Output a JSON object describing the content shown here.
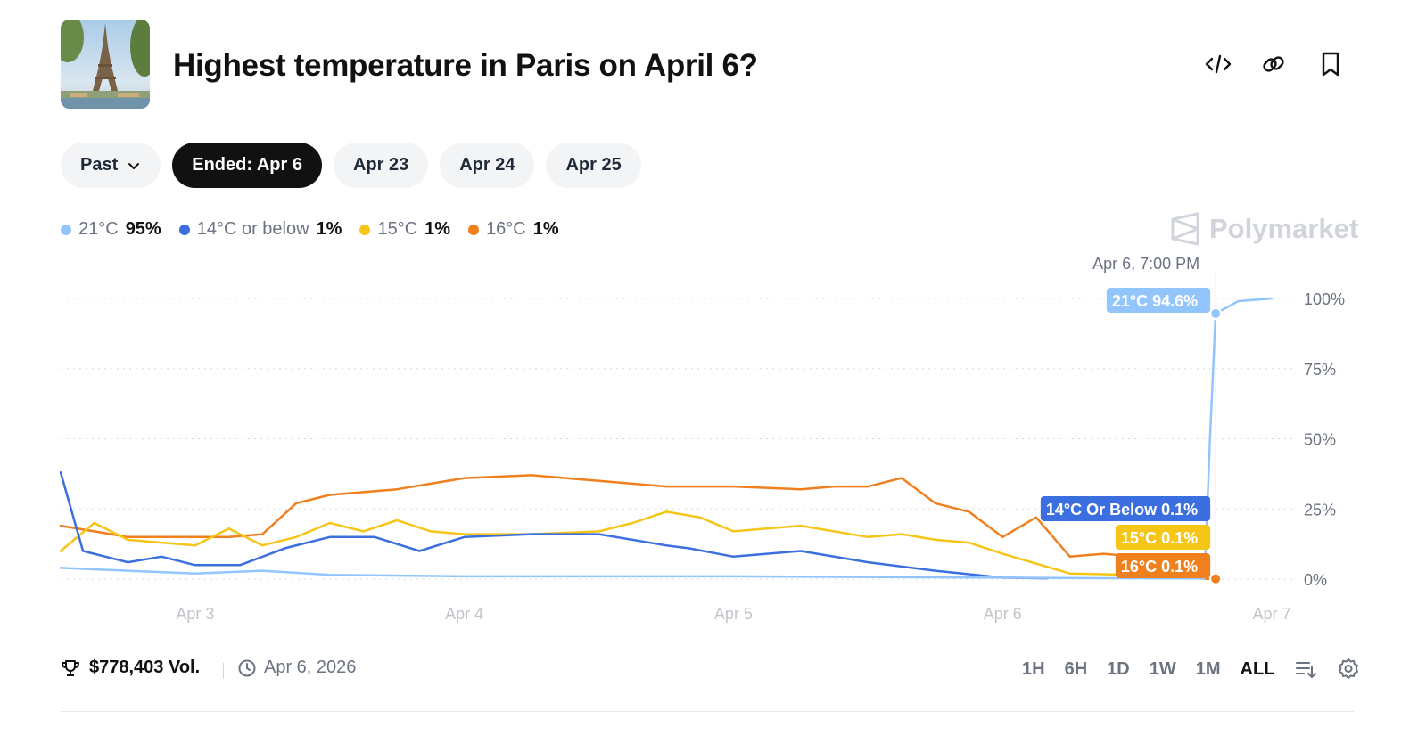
{
  "header": {
    "title": "Highest temperature in Paris on April 6?",
    "icons": [
      "embed-code-icon",
      "link-icon",
      "bookmark-icon"
    ]
  },
  "tabs": [
    {
      "label": "Past",
      "active": false,
      "has_chevron": true
    },
    {
      "label": "Ended: Apr 6",
      "active": true
    },
    {
      "label": "Apr 23",
      "active": false
    },
    {
      "label": "Apr 24",
      "active": false
    },
    {
      "label": "Apr 25",
      "active": false
    }
  ],
  "legend": [
    {
      "name": "21°C",
      "value": "95%",
      "color": "#93c5fd"
    },
    {
      "name": "14°C or below",
      "value": "1%",
      "color": "#3b6fe0"
    },
    {
      "name": "15°C",
      "value": "1%",
      "color": "#f5c518"
    },
    {
      "name": "16°C",
      "value": "1%",
      "color": "#f07f1e"
    }
  ],
  "brand": "Polymarket",
  "chart_data": {
    "type": "line",
    "hover_timestamp": "Apr 6, 7:00 PM",
    "x_ticks": [
      "Apr 3",
      "Apr 4",
      "Apr 5",
      "Apr 6",
      "Apr 7"
    ],
    "y_ticks": [
      "0%",
      "25%",
      "50%",
      "75%",
      "100%"
    ],
    "ylim": [
      0,
      100
    ],
    "xlim": [
      "Apr 2, 12:00 PM",
      "Apr 7"
    ],
    "grid": true,
    "series": [
      {
        "name": "21°C",
        "color": "#93c5fd",
        "tooltip": "21°C 94.6%",
        "x": [
          "Apr 2, 12:00 PM",
          "Apr 2, 6:00 PM",
          "Apr 3, 12:00 AM",
          "Apr 3, 6:00 AM",
          "Apr 3, 12:00 PM",
          "Apr 4, 12:00 AM",
          "Apr 5, 12:00 AM",
          "Apr 6, 12:00 AM",
          "Apr 6, 12:00 PM",
          "Apr 6, 6:00 PM",
          "Apr 6, 6:30 PM",
          "Apr 6, 7:00 PM",
          "Apr 6, 9:00 PM",
          "Apr 7"
        ],
        "values": [
          4,
          3,
          2,
          3,
          1.5,
          1,
          1,
          0.5,
          0.3,
          0.2,
          50,
          94.6,
          99,
          100
        ]
      },
      {
        "name": "14°C or below",
        "color": "#3b6fe0",
        "tooltip": "14°C Or Below 0.1%",
        "x": [
          "Apr 2, 12:00 PM",
          "Apr 2, 2:00 PM",
          "Apr 2, 6:00 PM",
          "Apr 2, 9:00 PM",
          "Apr 3, 12:00 AM",
          "Apr 3, 4:00 AM",
          "Apr 3, 8:00 AM",
          "Apr 3, 12:00 PM",
          "Apr 3, 4:00 PM",
          "Apr 3, 8:00 PM",
          "Apr 4, 12:00 AM",
          "Apr 4, 6:00 AM",
          "Apr 4, 12:00 PM",
          "Apr 4, 6:00 PM",
          "Apr 4, 8:00 PM",
          "Apr 5, 12:00 AM",
          "Apr 5, 6:00 AM",
          "Apr 5, 12:00 PM",
          "Apr 5, 6:00 PM",
          "Apr 6, 12:00 AM",
          "Apr 6, 4:00 AM"
        ],
        "values": [
          38,
          10,
          6,
          8,
          5,
          5,
          11,
          15,
          15,
          10,
          15,
          16,
          16,
          12,
          11,
          8,
          10,
          6,
          3,
          0.5,
          0.3
        ]
      },
      {
        "name": "15°C",
        "color": "#f5c518",
        "tooltip": "15°C 0.1%",
        "x": [
          "Apr 2, 12:00 PM",
          "Apr 2, 3:00 PM",
          "Apr 2, 6:00 PM",
          "Apr 2, 9:00 PM",
          "Apr 3, 12:00 AM",
          "Apr 3, 3:00 AM",
          "Apr 3, 6:00 AM",
          "Apr 3, 9:00 AM",
          "Apr 3, 12:00 PM",
          "Apr 3, 3:00 PM",
          "Apr 3, 6:00 PM",
          "Apr 3, 9:00 PM",
          "Apr 4, 12:00 AM",
          "Apr 4, 6:00 AM",
          "Apr 4, 12:00 PM",
          "Apr 4, 3:00 PM",
          "Apr 4, 6:00 PM",
          "Apr 4, 9:00 PM",
          "Apr 5, 12:00 AM",
          "Apr 5, 6:00 AM",
          "Apr 5, 12:00 PM",
          "Apr 5, 3:00 PM",
          "Apr 5, 6:00 PM",
          "Apr 5, 9:00 PM",
          "Apr 6, 12:00 AM",
          "Apr 6, 6:00 AM",
          "Apr 6, 12:00 PM",
          "Apr 6, 3:00 PM",
          "Apr 6, 6:00 PM"
        ],
        "values": [
          10,
          20,
          14,
          13,
          12,
          18,
          12,
          15,
          20,
          17,
          21,
          17,
          16,
          16,
          17,
          20,
          24,
          22,
          17,
          19,
          15,
          16,
          14,
          13,
          9,
          2,
          1.5,
          1,
          0.1
        ]
      },
      {
        "name": "16°C",
        "color": "#f07f1e",
        "tooltip": "16°C 0.1%",
        "x": [
          "Apr 2, 12:00 PM",
          "Apr 2, 3:00 PM",
          "Apr 2, 6:00 PM",
          "Apr 2, 9:00 PM",
          "Apr 3, 12:00 AM",
          "Apr 3, 3:00 AM",
          "Apr 3, 6:00 AM",
          "Apr 3, 9:00 AM",
          "Apr 3, 12:00 PM",
          "Apr 3, 6:00 PM",
          "Apr 4, 12:00 AM",
          "Apr 4, 6:00 AM",
          "Apr 4, 12:00 PM",
          "Apr 4, 6:00 PM",
          "Apr 5, 12:00 AM",
          "Apr 5, 6:00 AM",
          "Apr 5, 9:00 AM",
          "Apr 5, 12:00 PM",
          "Apr 5, 3:00 PM",
          "Apr 5, 6:00 PM",
          "Apr 5, 9:00 PM",
          "Apr 6, 12:00 AM",
          "Apr 6, 3:00 AM",
          "Apr 6, 6:00 AM",
          "Apr 6, 9:00 AM",
          "Apr 6, 12:00 PM",
          "Apr 6, 3:00 PM",
          "Apr 6, 6:00 PM",
          "Apr 6, 7:00 PM"
        ],
        "values": [
          19,
          17,
          15,
          15,
          15,
          15,
          16,
          27,
          30,
          32,
          36,
          37,
          35,
          33,
          33,
          32,
          33,
          33,
          36,
          27,
          24,
          15,
          22,
          8,
          9,
          8,
          6,
          0.1,
          0.1
        ]
      }
    ]
  },
  "footer": {
    "volume": "$778,403 Vol.",
    "date": "Apr 6, 2026",
    "ranges": [
      "1H",
      "6H",
      "1D",
      "1W",
      "1M",
      "ALL"
    ],
    "active_range": "ALL"
  }
}
